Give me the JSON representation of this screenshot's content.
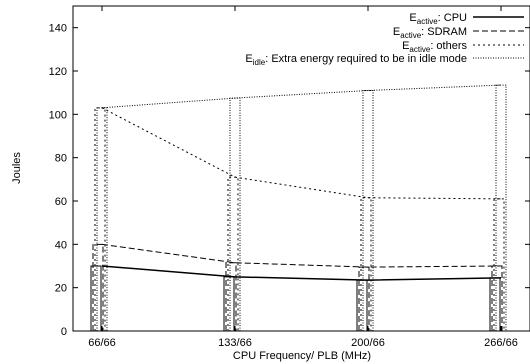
{
  "chart_data": {
    "type": "line",
    "title": "",
    "xlabel": "CPU Frequency/ PLB (MHz)",
    "ylabel": "Joules",
    "categories": [
      "66/66",
      "133/66",
      "200/66",
      "266/66"
    ],
    "ylim": [
      0,
      150
    ],
    "yticks": [
      0,
      20,
      40,
      60,
      80,
      100,
      120,
      140
    ],
    "grid": false,
    "legend_position": "top-right",
    "series": [
      {
        "key": "cpu",
        "legend_main": "E",
        "legend_sub": "active",
        "legend_rest": ": CPU",
        "values": [
          30,
          25,
          23.5,
          24.5
        ],
        "dash": "solid"
      },
      {
        "key": "sdram",
        "legend_main": "E",
        "legend_sub": "active",
        "legend_rest": ": SDRAM",
        "values": [
          40,
          31.5,
          29.5,
          30
        ],
        "dash": "dashed"
      },
      {
        "key": "other",
        "legend_main": "E",
        "legend_sub": "active",
        "legend_rest": ": others",
        "values": [
          103,
          71,
          61.5,
          61
        ],
        "dash": "dotted"
      },
      {
        "key": "idle",
        "legend_main": "E",
        "legend_sub": "idle",
        "legend_rest": ": Extra energy required to be in idle mode",
        "values": [
          103,
          107.5,
          111,
          113.5
        ],
        "dash": "fine-dotted"
      }
    ]
  }
}
